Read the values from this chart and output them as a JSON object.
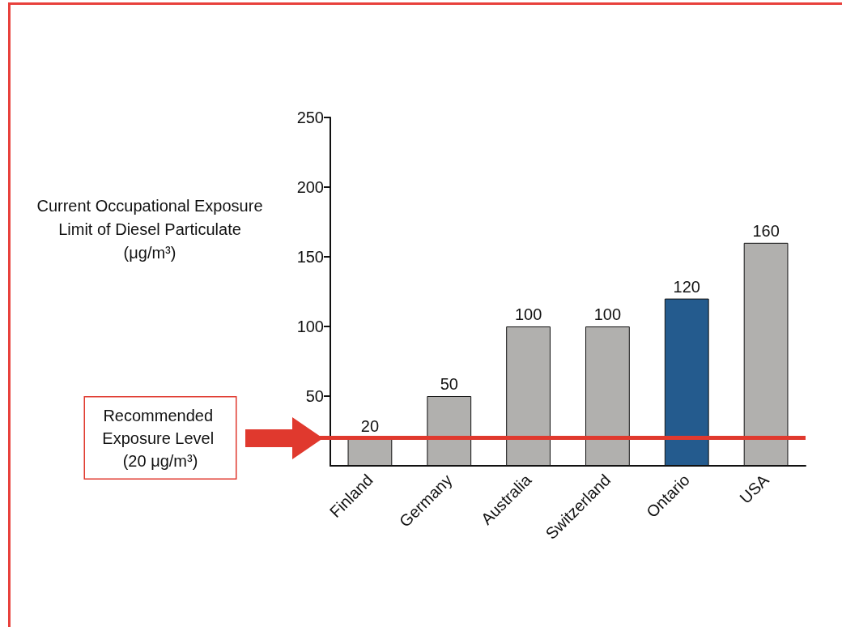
{
  "chart_data": {
    "type": "bar",
    "ylabel": "Current Occupational Exposure Limit of Diesel Particulate (μg/m³)",
    "categories": [
      "Finland",
      "Germany",
      "Australia",
      "Switzerland",
      "Ontario",
      "USA"
    ],
    "values": [
      20,
      50,
      100,
      100,
      120,
      160
    ],
    "colors": [
      "#b1b0ae",
      "#b1b0ae",
      "#b1b0ae",
      "#b1b0ae",
      "#245b8e",
      "#b1b0ae"
    ],
    "ylim": [
      0,
      250
    ],
    "yticks": [
      50,
      100,
      150,
      200,
      250
    ],
    "grid": false,
    "data_labels": true,
    "ref_lines": [
      {
        "axis": "y",
        "value": 20,
        "label": "Recommended Exposure Level (20 μg/m³)",
        "color": "#e0392e"
      }
    ]
  }
}
